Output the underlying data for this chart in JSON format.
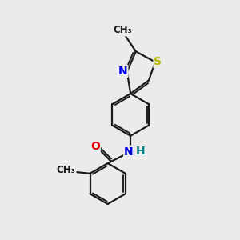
{
  "background_color": "#ebebeb",
  "bond_color": "#1a1a1a",
  "bond_width": 1.6,
  "dbo": 0.055,
  "atom_colors": {
    "S": "#b8b800",
    "N": "#0000ee",
    "NH": "#0000ee",
    "H": "#008080",
    "O": "#dd0000",
    "C": "#1a1a1a"
  },
  "font_size": 10,
  "font_size_small": 8.5,
  "xlim": [
    -0.3,
    4.8
  ],
  "ylim": [
    -0.2,
    6.5
  ]
}
